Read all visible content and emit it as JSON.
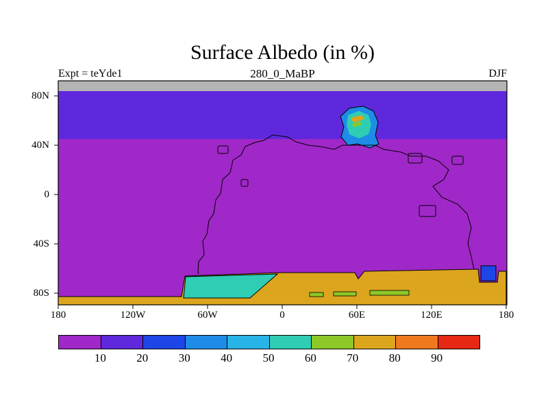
{
  "chart_data": {
    "type": "heatmap",
    "title": "Surface Albedo (in %)",
    "subtitle": "280_0_MaBP",
    "experiment_label": "Expt = teYde1",
    "season": "DJF",
    "units": "%",
    "x_axis": {
      "ticks": [
        "180",
        "120W",
        "60W",
        "0",
        "60E",
        "120E",
        "180"
      ]
    },
    "y_axis": {
      "ticks": [
        "80N",
        "40N",
        "0",
        "40S",
        "80S"
      ]
    },
    "colorbar": {
      "boundary_labels": [
        "10",
        "20",
        "30",
        "40",
        "50",
        "60",
        "70",
        "80",
        "90"
      ],
      "colors": [
        "#A028C8",
        "#5F28DC",
        "#1E46E6",
        "#1E8CE6",
        "#28B4E6",
        "#2ECDB4",
        "#8CC828",
        "#DCA51E",
        "#F0781E",
        "#E62814"
      ]
    },
    "map_colors": {
      "no_data": "#B4B4B4"
    },
    "field_regions": [
      {
        "region": "global ocean and most land surface",
        "lat": "78S-45N",
        "albedo_range": "0-10"
      },
      {
        "region": "northern high-latitude band",
        "lat": "45N-82N",
        "albedo_range": "10-20"
      },
      {
        "region": "north polar cap strip",
        "lat": "82N-90N",
        "albedo_range": "no data (gray)"
      },
      {
        "region": "antarctic ice cap belt",
        "lat": "62S-90S",
        "albedo_range": "70-80"
      },
      {
        "region": "west antarctic sector patch",
        "lat": "65S-80S",
        "lon": "95W-30W",
        "albedo_range": "50-60"
      },
      {
        "region": "antarctic interior strips",
        "lat": "~77S",
        "lon": "20E-95E",
        "albedo_range": "60-70"
      },
      {
        "region": "highland near 55N 60E",
        "albedo_range": "20-60 with small 60-80 spots"
      },
      {
        "region": "coastal patch near 65S 160E",
        "albedo_range": "20-40"
      },
      {
        "region": "coastlines",
        "note": "Pangea-like supercontinent outline (280 Ma)"
      }
    ]
  }
}
